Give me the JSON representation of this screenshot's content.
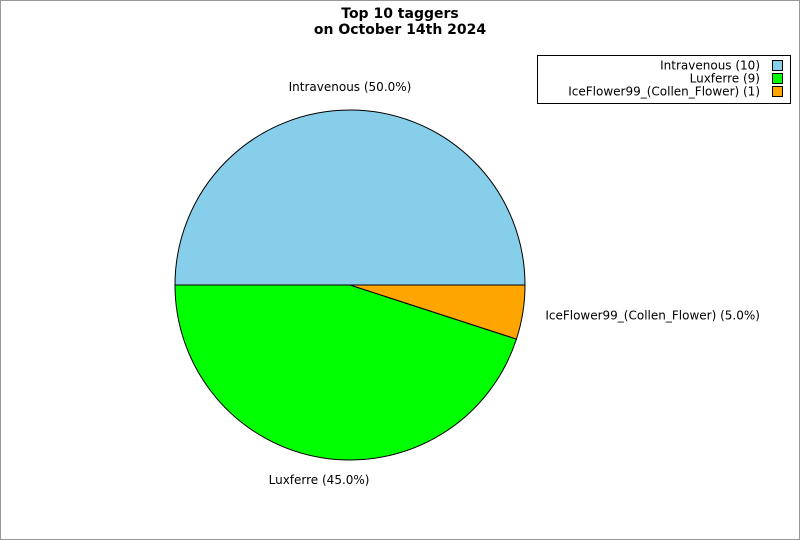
{
  "chart_data": {
    "type": "pie",
    "title": [
      "Top 10 taggers",
      "on October 14th 2024"
    ],
    "values": [
      50.0,
      45.0,
      5.0
    ],
    "value_labels": [
      "Intravenous (50.0%)",
      "Luxferre (45.0%)",
      "IceFlower99_(Collen_Flower) (5.0%)"
    ],
    "colors": [
      "#87ceeb",
      "#00ff00",
      "#ffa500"
    ],
    "legend": {
      "position": "upper right",
      "labels": [
        "Intravenous (10)",
        "Luxferre (9)",
        "IceFlower99_(Collen_Flower) (1)"
      ],
      "counts": [
        10,
        9,
        1
      ]
    }
  }
}
